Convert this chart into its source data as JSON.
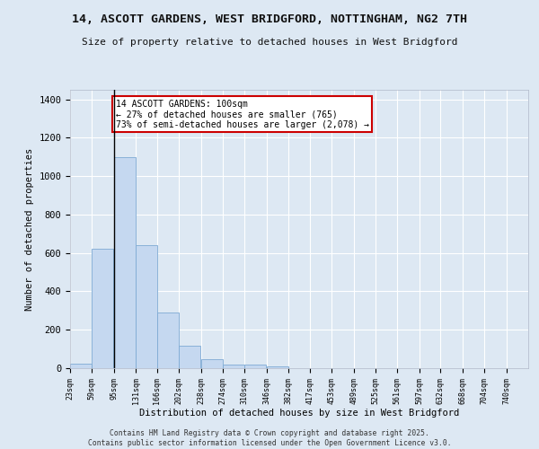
{
  "title": "14, ASCOTT GARDENS, WEST BRIDGFORD, NOTTINGHAM, NG2 7TH",
  "subtitle": "Size of property relative to detached houses in West Bridgford",
  "xlabel": "Distribution of detached houses by size in West Bridgford",
  "ylabel": "Number of detached properties",
  "bar_color": "#c5d8f0",
  "bar_edge_color": "#7eaad4",
  "bg_color": "#dde8f3",
  "grid_color": "#ffffff",
  "property_line_x": 95,
  "annotation_text": "14 ASCOTT GARDENS: 100sqm\n← 27% of detached houses are smaller (765)\n73% of semi-detached houses are larger (2,078) →",
  "annotation_box_color": "#ffffff",
  "annotation_box_edge": "#cc0000",
  "bins": [
    23,
    59,
    95,
    131,
    166,
    202,
    238,
    274,
    310,
    346,
    382,
    417,
    453,
    489,
    525,
    561,
    597,
    632,
    668,
    704,
    740
  ],
  "bar_heights": [
    25,
    620,
    1100,
    640,
    290,
    115,
    45,
    20,
    20,
    10,
    0,
    0,
    0,
    0,
    0,
    0,
    0,
    0,
    0,
    0
  ],
  "footer_text": "Contains HM Land Registry data © Crown copyright and database right 2025.\nContains public sector information licensed under the Open Government Licence v3.0.",
  "ylim": [
    0,
    1450
  ],
  "yticks": [
    0,
    200,
    400,
    600,
    800,
    1000,
    1200,
    1400
  ]
}
